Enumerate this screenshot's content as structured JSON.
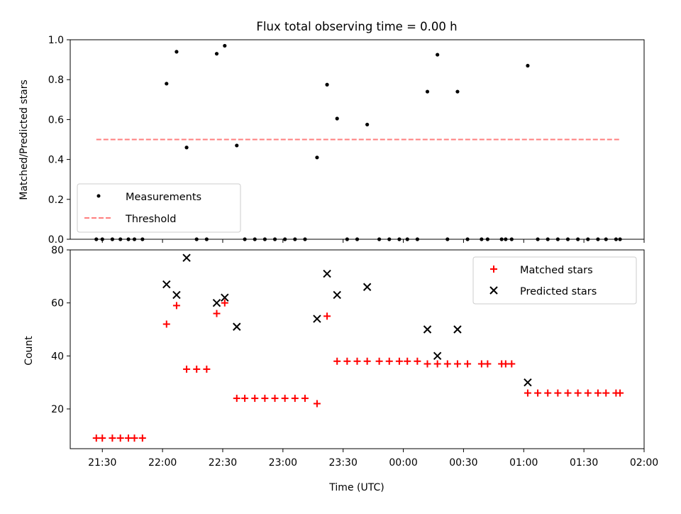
{
  "chart_data": [
    {
      "type": "scatter",
      "title": "Flux total observing time = 0.00 h",
      "xlabel": "",
      "ylabel": "Matched/Predicted stars",
      "xlim": [
        "21:14",
        "02:00"
      ],
      "ylim": [
        0,
        1.0
      ],
      "yticks": [
        0.0,
        0.2,
        0.4,
        0.6,
        0.8,
        1.0
      ],
      "ytick_labels": [
        "0.0",
        "0.2",
        "0.4",
        "0.6",
        "0.8",
        "1.0"
      ],
      "legend_position": "lower-left",
      "series": [
        {
          "name": "Measurements",
          "marker": "dot",
          "color": "#000000",
          "x": [
            "21:27",
            "21:30",
            "21:35",
            "21:39",
            "21:43",
            "21:46",
            "21:50",
            "22:02",
            "22:07",
            "22:12",
            "22:17",
            "22:22",
            "22:27",
            "22:31",
            "22:37",
            "22:41",
            "22:46",
            "22:51",
            "22:56",
            "23:01",
            "23:06",
            "23:11",
            "23:17",
            "23:22",
            "23:27",
            "23:32",
            "23:37",
            "23:42",
            "23:48",
            "23:53",
            "23:58",
            "00:02",
            "00:07",
            "00:12",
            "00:17",
            "00:22",
            "00:27",
            "00:32",
            "00:39",
            "00:42",
            "00:49",
            "00:51",
            "00:54",
            "01:02",
            "01:07",
            "01:12",
            "01:17",
            "01:22",
            "01:27",
            "01:32",
            "01:37",
            "01:41",
            "01:46",
            "01:48"
          ],
          "y": [
            0,
            0,
            0,
            0,
            0,
            0,
            0,
            0.78,
            0.94,
            0.46,
            0,
            0,
            0.93,
            0.97,
            0.47,
            0,
            0,
            0,
            0,
            0,
            0,
            0,
            0.41,
            0.775,
            0.605,
            0,
            0,
            0.575,
            0,
            0,
            0,
            0,
            0,
            0.74,
            0.925,
            0,
            0.74,
            0,
            0,
            0,
            0,
            0,
            0,
            0.87,
            0,
            0,
            0,
            0,
            0,
            0,
            0,
            0,
            0,
            0
          ]
        },
        {
          "name": "Threshold",
          "line_style": "dashed",
          "color": "#ff7f7f",
          "x": [
            "21:27",
            "01:48"
          ],
          "y": [
            0.5,
            0.5
          ]
        }
      ]
    },
    {
      "type": "scatter",
      "title": "",
      "xlabel": "Time (UTC)",
      "ylabel": "Count",
      "xlim": [
        "21:14",
        "02:00"
      ],
      "ylim": [
        5,
        80
      ],
      "yticks": [
        20,
        40,
        60,
        80
      ],
      "ytick_labels": [
        "20",
        "40",
        "60",
        "80"
      ],
      "xticks": [
        "21:30",
        "22:00",
        "22:30",
        "23:00",
        "23:30",
        "00:00",
        "00:30",
        "01:00",
        "01:30",
        "02:00"
      ],
      "legend_position": "upper-right",
      "series": [
        {
          "name": "Matched stars",
          "marker": "plus",
          "color": "#ff0000",
          "x": [
            "21:27",
            "21:30",
            "21:35",
            "21:39",
            "21:43",
            "21:46",
            "21:50",
            "22:02",
            "22:07",
            "22:12",
            "22:17",
            "22:22",
            "22:27",
            "22:31",
            "22:37",
            "22:41",
            "22:46",
            "22:51",
            "22:56",
            "23:01",
            "23:06",
            "23:11",
            "23:17",
            "23:22",
            "23:27",
            "23:32",
            "23:37",
            "23:42",
            "23:48",
            "23:53",
            "23:58",
            "00:02",
            "00:07",
            "00:12",
            "00:17",
            "00:22",
            "00:27",
            "00:32",
            "00:39",
            "00:42",
            "00:49",
            "00:51",
            "00:54",
            "01:02",
            "01:07",
            "01:12",
            "01:17",
            "01:22",
            "01:27",
            "01:32",
            "01:37",
            "01:41",
            "01:46",
            "01:48"
          ],
          "y": [
            9,
            9,
            9,
            9,
            9,
            9,
            9,
            52,
            59,
            35,
            35,
            35,
            56,
            60,
            24,
            24,
            24,
            24,
            24,
            24,
            24,
            24,
            22,
            55,
            38,
            38,
            38,
            38,
            38,
            38,
            38,
            38,
            38,
            37,
            37,
            37,
            37,
            37,
            37,
            37,
            37,
            37,
            37,
            26,
            26,
            26,
            26,
            26,
            26,
            26,
            26,
            26,
            26,
            26
          ]
        },
        {
          "name": "Predicted stars",
          "marker": "x",
          "color": "#000000",
          "x": [
            "22:02",
            "22:07",
            "22:12",
            "22:27",
            "22:31",
            "22:37",
            "23:17",
            "23:22",
            "23:27",
            "23:42",
            "00:12",
            "00:17",
            "00:27",
            "01:02"
          ],
          "y": [
            67,
            63,
            77,
            60,
            62,
            51,
            54,
            71,
            63,
            66,
            50,
            40,
            50,
            30
          ]
        }
      ]
    }
  ]
}
